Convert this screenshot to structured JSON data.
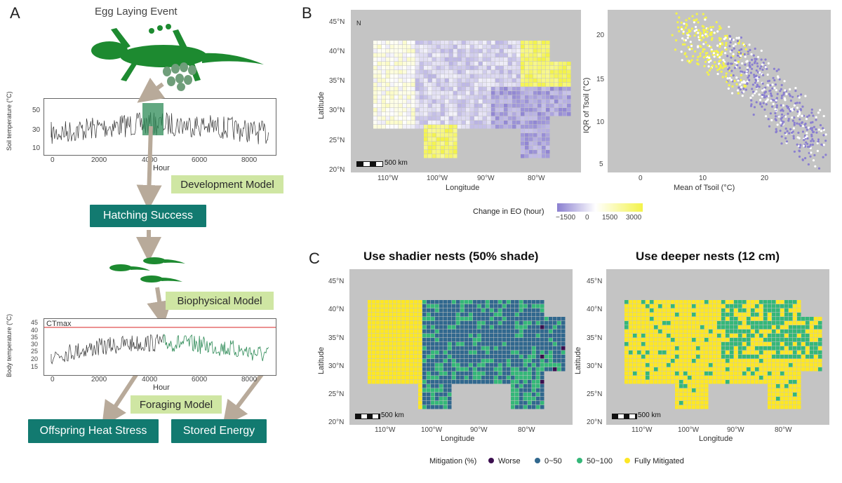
{
  "panel_a": {
    "letter": "A",
    "title": "Egg Laying Event",
    "soil_plot": {
      "ylabel": "Soil temperature (°C)",
      "xlabel": "Hour",
      "yticks": [
        "10",
        "30",
        "50"
      ],
      "xticks": [
        "0",
        "2000",
        "4000",
        "6000",
        "8000"
      ]
    },
    "dev_model": "Development Model",
    "hatching": "Hatching Success",
    "bio_model": "Biophysical Model",
    "body_plot": {
      "ylabel": "Body temperature (°C)",
      "xlabel": "Hour",
      "ctmax": "CTmax",
      "yticks": [
        "15",
        "20",
        "25",
        "30",
        "35",
        "40",
        "45"
      ],
      "xticks": [
        "0",
        "2000",
        "4000",
        "6000",
        "8000"
      ]
    },
    "forage_model": "Foraging Model",
    "offspring": "Offspring Heat Stress",
    "stored": "Stored Energy"
  },
  "panel_b": {
    "letter": "B",
    "map": {
      "ylabel": "Latitude",
      "xlabel": "Longitude",
      "lat_ticks": [
        "45°N",
        "40°N",
        "35°N",
        "30°N",
        "25°N",
        "20°N"
      ],
      "lon_ticks": [
        "110°W",
        "100°W",
        "90°W",
        "80°W"
      ],
      "scale": "500 km",
      "north": "N"
    },
    "scatter": {
      "ylabel": "IQR of Tsoil (°C)",
      "xlabel": "Mean of Tsoil (°C)",
      "yticks": [
        "20",
        "15",
        "10",
        "5"
      ],
      "xticks": [
        "0",
        "10",
        "20"
      ]
    },
    "legend_title": "Change in EO (hour)",
    "legend_ticks": [
      "−1500",
      "0",
      "1500",
      "3000"
    ],
    "colors": {
      "neg": "#8a7fd0",
      "mid": "#ffffff",
      "pos": "#f3f34a"
    }
  },
  "panel_c": {
    "letter": "C",
    "left_title": "Use shadier nests (50% shade)",
    "right_title": "Use deeper nests (12 cm)",
    "map": {
      "ylabel": "Latitude",
      "xlabel": "Longitude",
      "lat_ticks": [
        "45°N",
        "40°N",
        "35°N",
        "30°N",
        "25°N",
        "20°N"
      ],
      "lon_ticks": [
        "110°W",
        "100°W",
        "90°W",
        "80°W"
      ],
      "scale": "500 km"
    },
    "legend_title": "Mitigation (%)",
    "legend_items": [
      {
        "label": "Worse",
        "color": "#3b0f4f"
      },
      {
        "label": "0~50",
        "color": "#31688e"
      },
      {
        "label": "50~100",
        "color": "#35b779"
      },
      {
        "label": "Fully Mitigated",
        "color": "#fde725"
      }
    ]
  }
}
